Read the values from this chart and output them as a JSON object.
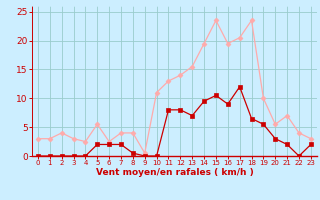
{
  "x": [
    0,
    1,
    2,
    3,
    4,
    5,
    6,
    7,
    8,
    9,
    10,
    11,
    12,
    13,
    14,
    15,
    16,
    17,
    18,
    19,
    20,
    21,
    22,
    23
  ],
  "avg_wind": [
    0,
    0,
    0,
    0,
    0,
    2,
    2,
    2,
    0.5,
    0,
    0,
    8,
    8,
    7,
    9.5,
    10.5,
    9,
    12,
    6.5,
    5.5,
    3,
    2,
    0,
    2
  ],
  "gusts": [
    3,
    3,
    4,
    3,
    2.5,
    5.5,
    2.5,
    4,
    4,
    0.5,
    11,
    13,
    14,
    15.5,
    19.5,
    23.5,
    19.5,
    20.5,
    23.5,
    10,
    5.5,
    7,
    4,
    3
  ],
  "avg_color": "#cc0000",
  "gust_color": "#ffaaaa",
  "bg_color": "#cceeff",
  "grid_color": "#99cccc",
  "xlabel": "Vent moyen/en rafales ( km/h )",
  "xlabel_color": "#cc0000",
  "tick_color": "#cc0000",
  "axis_color": "#cc0000",
  "ylim": [
    0,
    26
  ],
  "yticks": [
    0,
    5,
    10,
    15,
    20,
    25
  ],
  "xlim": [
    -0.5,
    23.5
  ]
}
